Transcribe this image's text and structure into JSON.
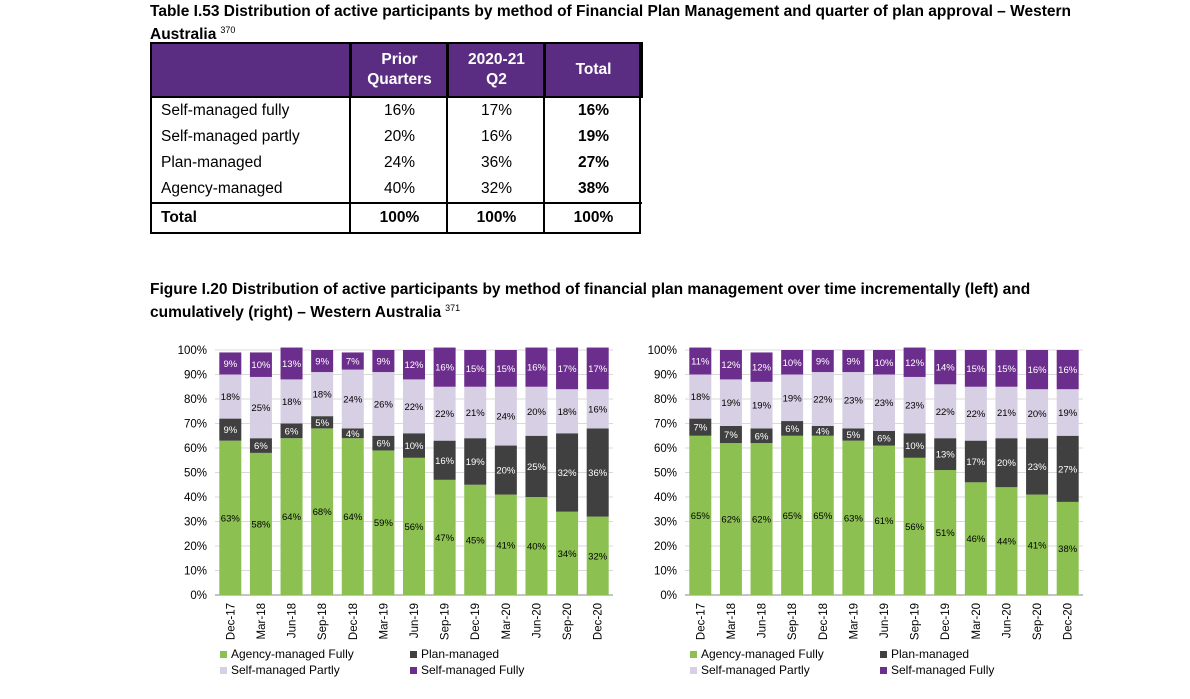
{
  "table": {
    "title": "Table I.53 Distribution of active participants by method of Financial Plan Management and quarter of plan approval – Western Australia",
    "footnote": "370",
    "headers": {
      "prior": "Prior Quarters",
      "current": "2020-21 Q2",
      "total": "Total"
    },
    "rows": [
      {
        "label": "Self-managed fully",
        "prior": "16%",
        "current": "17%",
        "total": "16%"
      },
      {
        "label": "Self-managed partly",
        "prior": "20%",
        "current": "16%",
        "total": "19%"
      },
      {
        "label": "Plan-managed",
        "prior": "24%",
        "current": "36%",
        "total": "27%"
      },
      {
        "label": "Agency-managed",
        "prior": "40%",
        "current": "32%",
        "total": "38%"
      }
    ],
    "total_row": {
      "label": "Total",
      "prior": "100%",
      "current": "100%",
      "total": "100%"
    }
  },
  "figure": {
    "title": "Figure I.20 Distribution of active participants by method of financial plan management over time incrementally (left) and cumulatively (right) – Western Australia",
    "footnote": "371"
  },
  "colors": {
    "agency": "#8cc152",
    "plan": "#404040",
    "partly": "#d7cfe3",
    "fully": "#6c2e8c",
    "header": "#5b2d82"
  },
  "chart_data": [
    {
      "type": "bar",
      "stacked": true,
      "categories": [
        "Dec-17",
        "Mar-18",
        "Jun-18",
        "Sep-18",
        "Dec-18",
        "Mar-19",
        "Jun-19",
        "Sep-19",
        "Dec-19",
        "Mar-20",
        "Jun-20",
        "Sep-20",
        "Dec-20"
      ],
      "yticks": [
        "0%",
        "10%",
        "20%",
        "30%",
        "40%",
        "50%",
        "60%",
        "70%",
        "80%",
        "90%",
        "100%"
      ],
      "ylim": [
        0,
        100
      ],
      "series": [
        {
          "name": "Agency-managed Fully",
          "values": [
            63,
            58,
            64,
            68,
            64,
            59,
            56,
            47,
            45,
            41,
            40,
            34,
            32
          ],
          "labels": [
            "63%",
            "58%",
            "64%",
            "68%",
            "64%",
            "59%",
            "56%",
            "47%",
            "45%",
            "41%",
            "40%",
            "34%",
            "32%"
          ]
        },
        {
          "name": "Plan-managed",
          "values": [
            9,
            6,
            6,
            5,
            4,
            6,
            10,
            16,
            19,
            20,
            25,
            32,
            36
          ],
          "labels": [
            "9%",
            "6%",
            "6%",
            "5%",
            "4%",
            "6%",
            "10%",
            "16%",
            "19%",
            "20%",
            "25%",
            "32%",
            "36%"
          ]
        },
        {
          "name": "Self-managed Partly",
          "values": [
            18,
            25,
            18,
            18,
            24,
            26,
            22,
            22,
            21,
            24,
            20,
            18,
            16
          ],
          "labels": [
            "18%",
            "25%",
            "18%",
            "18%",
            "24%",
            "26%",
            "22%",
            "22%",
            "21%",
            "24%",
            "20%",
            "18%",
            "16%"
          ]
        },
        {
          "name": "Self-managed Fully",
          "values": [
            9,
            10,
            13,
            9,
            7,
            9,
            12,
            16,
            15,
            15,
            16,
            17,
            17
          ],
          "labels": [
            "9%",
            "10%",
            "13%",
            "9%",
            "7%",
            "9%",
            "12%",
            "16%",
            "15%",
            "15%",
            "16%",
            "17%",
            "17%"
          ]
        }
      ]
    },
    {
      "type": "bar",
      "stacked": true,
      "categories": [
        "Dec-17",
        "Mar-18",
        "Jun-18",
        "Sep-18",
        "Dec-18",
        "Mar-19",
        "Jun-19",
        "Sep-19",
        "Dec-19",
        "Mar-20",
        "Jun-20",
        "Sep-20",
        "Dec-20"
      ],
      "yticks": [
        "0%",
        "10%",
        "20%",
        "30%",
        "40%",
        "50%",
        "60%",
        "70%",
        "80%",
        "90%",
        "100%"
      ],
      "ylim": [
        0,
        100
      ],
      "series": [
        {
          "name": "Agency-managed Fully",
          "values": [
            65,
            62,
            62,
            65,
            65,
            63,
            61,
            56,
            51,
            46,
            44,
            41,
            38
          ],
          "labels": [
            "65%",
            "62%",
            "62%",
            "65%",
            "65%",
            "63%",
            "61%",
            "56%",
            "51%",
            "46%",
            "44%",
            "41%",
            "38%"
          ]
        },
        {
          "name": "Plan-managed",
          "values": [
            7,
            7,
            6,
            6,
            4,
            5,
            6,
            10,
            13,
            17,
            20,
            23,
            27
          ],
          "labels": [
            "7%",
            "7%",
            "6%",
            "6%",
            "4%",
            "5%",
            "6%",
            "10%",
            "13%",
            "17%",
            "20%",
            "23%",
            "27%"
          ]
        },
        {
          "name": "Self-managed Partly",
          "values": [
            18,
            19,
            19,
            19,
            22,
            23,
            23,
            23,
            22,
            22,
            21,
            20,
            19
          ],
          "labels": [
            "18%",
            "19%",
            "19%",
            "19%",
            "22%",
            "23%",
            "23%",
            "23%",
            "22%",
            "22%",
            "21%",
            "20%",
            "19%"
          ]
        },
        {
          "name": "Self-managed Fully",
          "values": [
            11,
            12,
            12,
            10,
            9,
            9,
            10,
            12,
            14,
            15,
            15,
            16,
            16
          ],
          "labels": [
            "11%",
            "12%",
            "12%",
            "10%",
            "9%",
            "9%",
            "10%",
            "12%",
            "14%",
            "15%",
            "15%",
            "16%",
            "16%"
          ]
        }
      ]
    }
  ]
}
